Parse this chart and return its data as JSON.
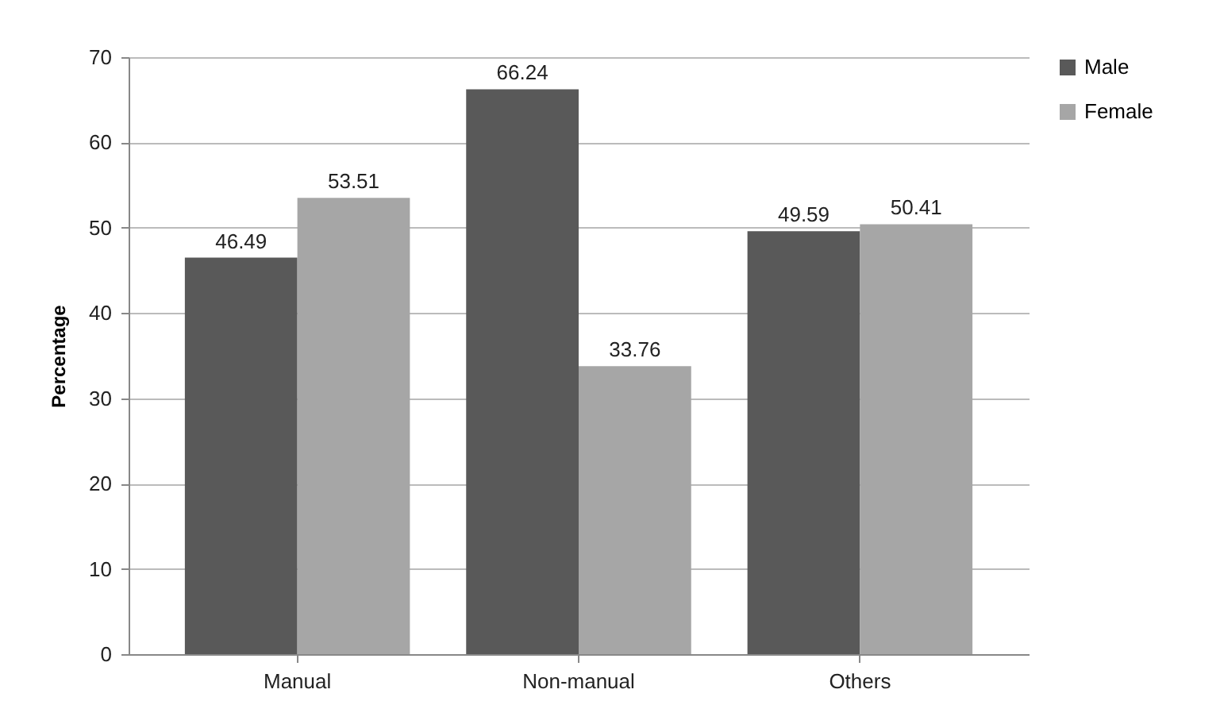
{
  "chart_data": {
    "type": "bar",
    "ylabel": "Percentage",
    "categories": [
      "Manual",
      "Non-manual",
      "Others"
    ],
    "series": [
      {
        "name": "Male",
        "color": "#595959",
        "values": [
          46.49,
          66.24,
          49.59
        ]
      },
      {
        "name": "Female",
        "color": "#a6a6a6",
        "values": [
          53.51,
          33.76,
          50.41
        ]
      }
    ],
    "ylim": [
      0,
      70
    ],
    "yticks": [
      0,
      10,
      20,
      30,
      40,
      50,
      60,
      70
    ],
    "grid": "y",
    "legend": "right",
    "data_labels": true
  }
}
